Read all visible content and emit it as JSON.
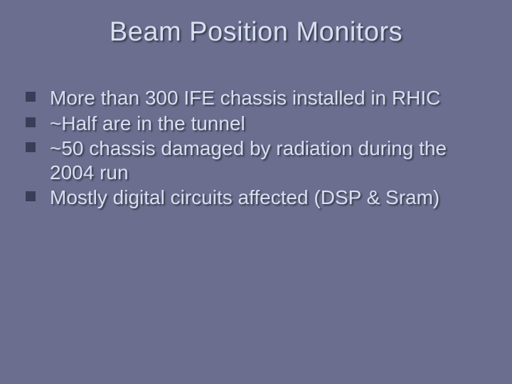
{
  "slide": {
    "title": "Beam Position Monitors",
    "bullets": [
      "More than 300 IFE chassis installed in RHIC",
      "~Half are in the tunnel",
      "~50 chassis damaged by radiation during the 2004 run",
      "Mostly digital circuits affected (DSP & Sram)"
    ],
    "colors": {
      "background": "#6b6e8f",
      "text": "#d6e0f0",
      "bullet_marker": "#3a3d57"
    },
    "typography": {
      "title_fontsize": 38,
      "body_fontsize": 28,
      "font_family": "Arial"
    }
  }
}
